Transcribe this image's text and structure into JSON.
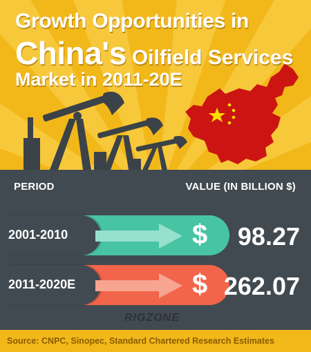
{
  "header": {
    "title_line1": "Growth Opportunities in",
    "title_big": "China's",
    "title_rest": "Oilfield Services",
    "title_line3": "Market in 2011-20E"
  },
  "table": {
    "col_period": "PERIOD",
    "col_value": "VALUE (IN BILLION $)",
    "rows": [
      {
        "period": "2001-2010",
        "value": "98.27",
        "symbol": "$",
        "color": "#47c4a4",
        "arrow_color": "#97e0cd"
      },
      {
        "period": "2011-2020E",
        "value": "262.07",
        "symbol": "$",
        "color": "#f2654a",
        "arrow_color": "#f7a491"
      }
    ]
  },
  "brand": "RIGZONE",
  "footer": {
    "source": "Source: CNPC, Sinopec, Standard Chartered Research Estimates"
  },
  "colors": {
    "background_yellow": "#f2b81a",
    "panel_gray": "#414a51",
    "china_red": "#cc1512",
    "star_yellow": "#ffde00"
  },
  "icons": [
    "oil-pump-icon",
    "china-flag-map-icon",
    "arrow-icon",
    "dollar-icon"
  ]
}
